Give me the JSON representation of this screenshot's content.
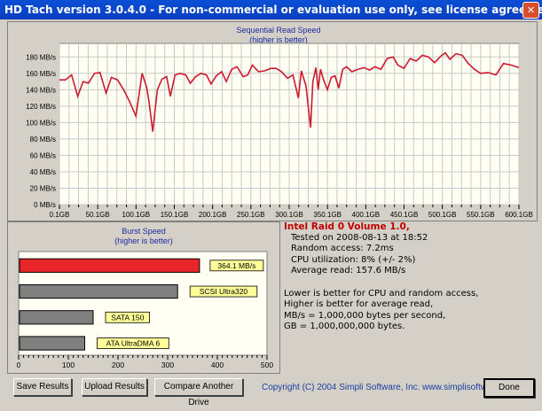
{
  "window": {
    "title": "HD Tach version 3.0.4.0  - For non-commercial or evaluation use only, see license agreement."
  },
  "seq_chart": {
    "title_line1": "Sequential Read Speed",
    "title_line2": "(higher is better)"
  },
  "burst_chart": {
    "title_line1": "Burst Speed",
    "title_line2": "(higher is better)"
  },
  "info": {
    "drive": "Intel Raid 0 Volume 1.0,",
    "tested": "Tested on 2008-08-13 at 18:52",
    "random_access": "Random access: 7.2ms",
    "cpu": "CPU utilization: 8% (+/- 2%)",
    "avg_read": "Average read: 157.6 MB/s",
    "note1": "Lower is better for CPU and random access,",
    "note2": "Higher is better for average read,",
    "note3": "MB/s = 1,000,000 bytes per second,",
    "note4": "GB = 1,000,000,000 bytes."
  },
  "buttons": {
    "save": "Save Results",
    "upload": "Upload Results",
    "compare": "Compare Another Drive",
    "done": "Done"
  },
  "footer": {
    "copyright": "Copyright (C) 2004 Simpli Software, Inc. www.simplisoftware.com"
  },
  "colors": {
    "title_bar": "#0a4fd6",
    "seq_line": "#cc1a2e",
    "burst_red": "#e8262a",
    "bar_gray": "#808080",
    "label_yellow": "#ffff99",
    "plot_bg": "#fffff4"
  },
  "chart_data": [
    {
      "type": "line",
      "title": "Sequential Read Speed",
      "subtitle": "(higher is better)",
      "x_ticks": [
        "0.1GB",
        "50.1GB",
        "100.1GB",
        "150.1GB",
        "200.1GB",
        "250.1GB",
        "300.1GB",
        "350.1GB",
        "400.1GB",
        "450.1GB",
        "500.1GB",
        "550.1GB",
        "600.1GB"
      ],
      "y_ticks": [
        "0 MB/s",
        "20 MB/s",
        "40 MB/s",
        "60 MB/s",
        "80 MB/s",
        "100 MB/s",
        "120 MB/s",
        "140 MB/s",
        "160 MB/s",
        "180 MB/s"
      ],
      "xlim": [
        0.1,
        600.1
      ],
      "ylim": [
        0,
        190
      ],
      "grid": true,
      "series": [
        {
          "x": [
            0.1,
            8,
            16,
            24,
            31,
            38,
            46,
            53,
            61,
            68,
            76,
            84,
            92,
            100,
            108,
            114,
            117,
            122,
            128,
            134,
            140,
            145,
            151,
            158,
            165,
            171,
            178,
            185,
            192,
            198,
            205,
            212,
            218,
            225,
            232,
            240,
            246,
            252,
            260,
            268,
            276,
            283,
            290,
            298,
            305,
            312,
            316,
            322,
            328,
            331,
            335,
            338,
            341,
            345,
            350,
            355,
            360,
            365,
            370,
            375,
            382,
            390,
            398,
            405,
            412,
            420,
            428,
            436,
            442,
            450,
            458,
            466,
            474,
            482,
            490,
            498,
            504,
            510,
            518,
            526,
            534,
            542,
            550,
            560,
            570,
            580,
            590,
            600.1
          ],
          "values": [
            152,
            152,
            158,
            132,
            150,
            148,
            160,
            161,
            136,
            155,
            152,
            140,
            125,
            108,
            160,
            143,
            126,
            89,
            140,
            153,
            156,
            132,
            158,
            160,
            158,
            148,
            156,
            160,
            158,
            147,
            157,
            162,
            150,
            165,
            168,
            156,
            158,
            170,
            162,
            163,
            166,
            166,
            162,
            154,
            158,
            130,
            163,
            145,
            94,
            150,
            167,
            140,
            165,
            152,
            140,
            155,
            157,
            142,
            165,
            168,
            162,
            165,
            167,
            164,
            168,
            165,
            178,
            180,
            170,
            166,
            178,
            175,
            182,
            180,
            173,
            181,
            185,
            177,
            184,
            182,
            172,
            165,
            160,
            161,
            158,
            172,
            170,
            167
          ]
        }
      ]
    },
    {
      "type": "bar",
      "title": "Burst Speed",
      "subtitle": "(higher is better)",
      "orientation": "horizontal",
      "x_ticks": [
        "0",
        "100",
        "200",
        "300",
        "400",
        "500"
      ],
      "xlim": [
        0,
        500
      ],
      "categories": [
        "364.1 MB/s",
        "SCSI Ultra320",
        "SATA 150",
        "ATA UltraDMA 6"
      ],
      "values": [
        364.1,
        320,
        150,
        133
      ],
      "bar_colors": [
        "#e8262a",
        "#808080",
        "#808080",
        "#808080"
      ]
    }
  ]
}
